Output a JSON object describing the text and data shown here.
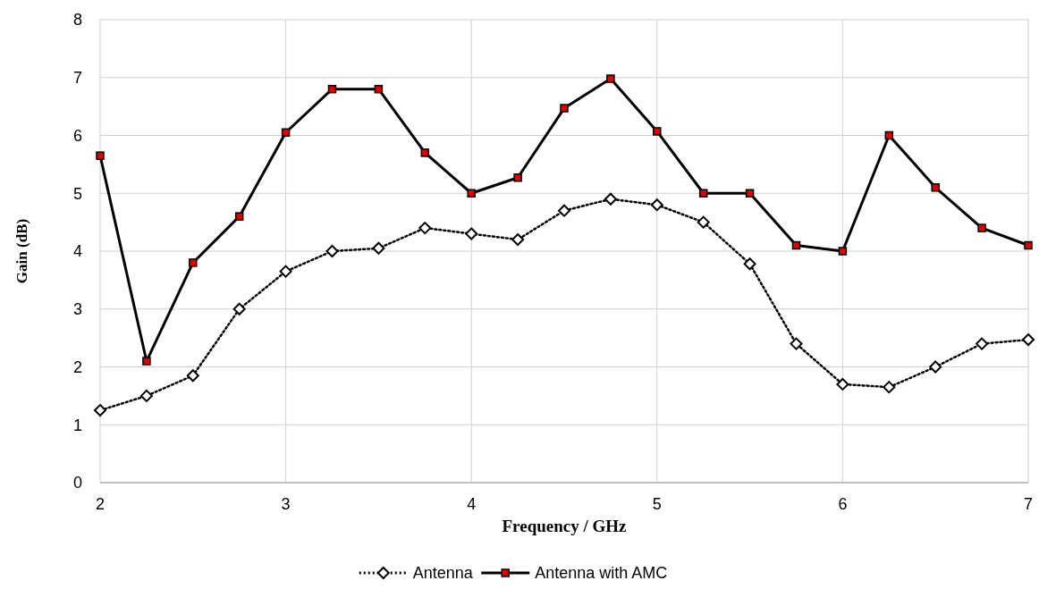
{
  "chart_data": {
    "type": "line",
    "xlabel": "Frequency / GHz",
    "ylabel": "Gain (dB)",
    "x": [
      2,
      2.25,
      2.5,
      2.75,
      3,
      3.25,
      3.5,
      3.75,
      4,
      4.25,
      4.5,
      4.75,
      5,
      5.25,
      5.5,
      5.75,
      6,
      6.25,
      6.5,
      6.75,
      7
    ],
    "series": [
      {
        "name": "Antenna",
        "color": "#000000",
        "marker": "diamond",
        "line_style": "dotted",
        "values": [
          1.25,
          1.5,
          1.85,
          3.0,
          3.65,
          4.0,
          4.05,
          4.4,
          4.3,
          4.2,
          4.7,
          4.9,
          4.8,
          4.5,
          3.78,
          2.4,
          1.7,
          1.65,
          2.0,
          2.4,
          2.47
        ]
      },
      {
        "name": "Antenna with AMC",
        "color": "#000000",
        "marker": "square",
        "line_style": "solid",
        "values": [
          5.65,
          2.1,
          3.8,
          4.6,
          6.05,
          6.8,
          6.8,
          5.7,
          5.0,
          5.27,
          6.47,
          6.98,
          6.07,
          5.0,
          5.0,
          4.1,
          4.0,
          6.0,
          5.1,
          4.4,
          4.1
        ]
      }
    ],
    "xlim": [
      2,
      7
    ],
    "xticks": [
      2,
      3,
      4,
      5,
      6,
      7
    ],
    "ylim": [
      0,
      8
    ],
    "yticks": [
      0,
      1,
      2,
      3,
      4,
      5,
      6,
      7,
      8
    ],
    "grid": true,
    "legend": "bottom"
  }
}
